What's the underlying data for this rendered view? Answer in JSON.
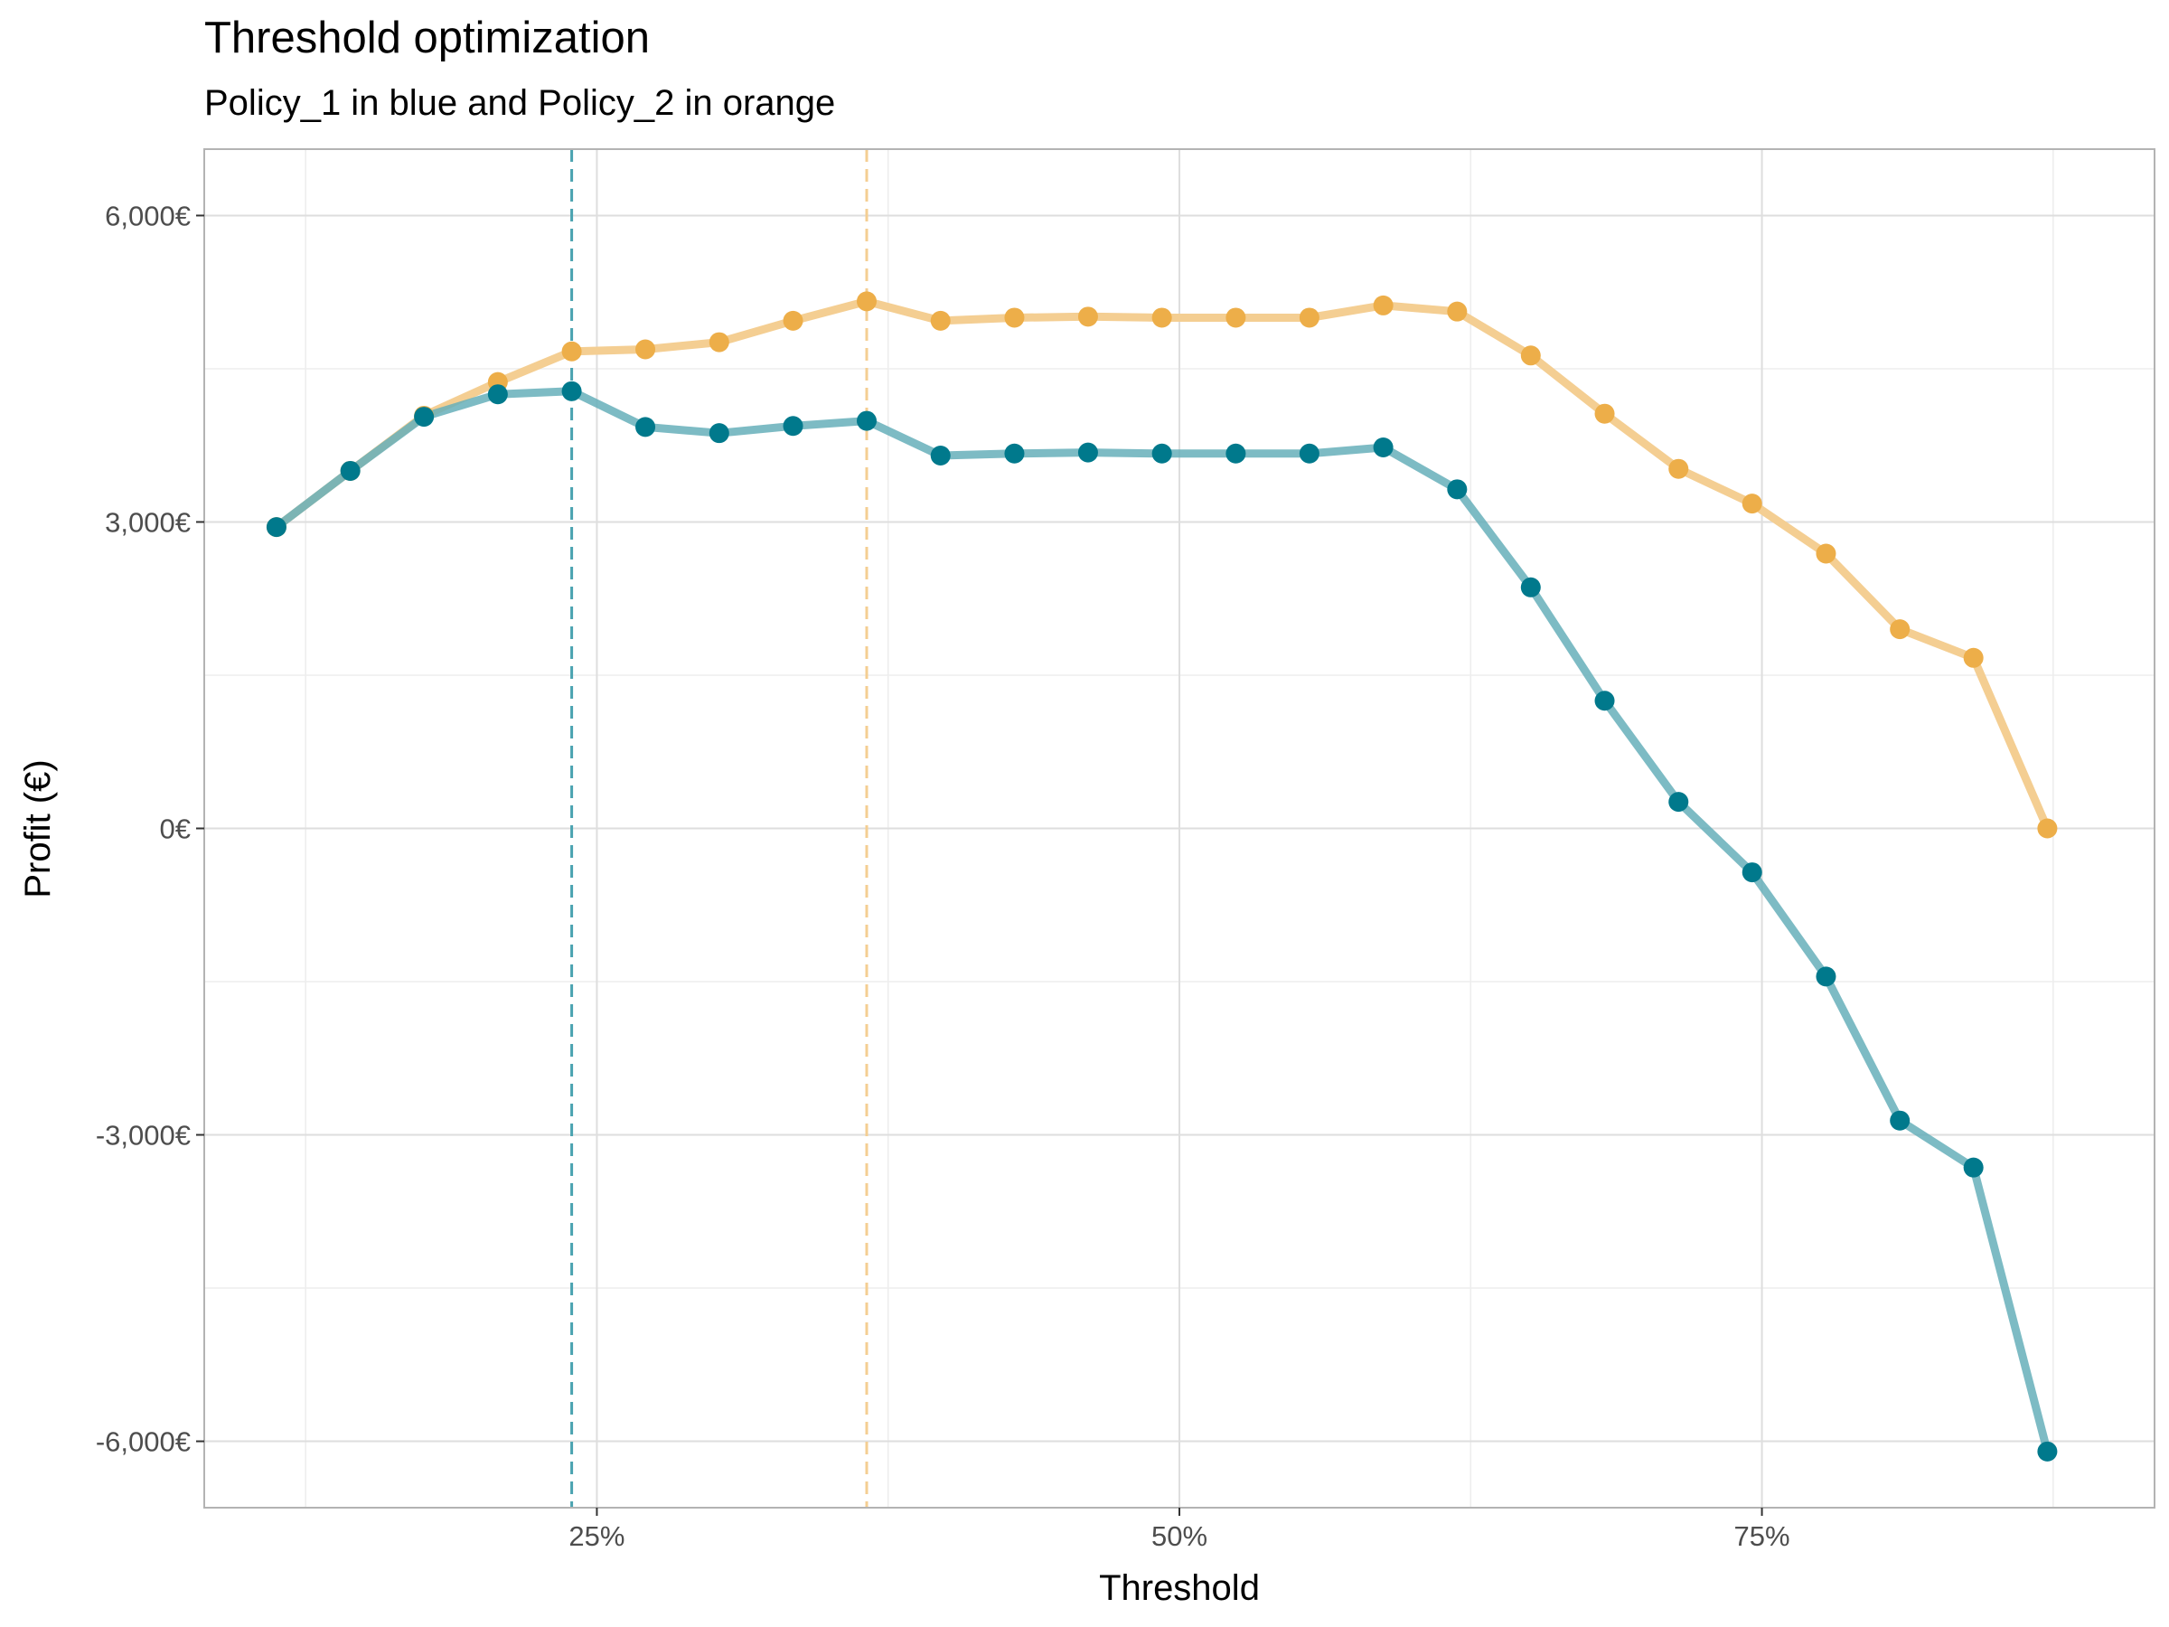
{
  "chart_data": {
    "type": "line",
    "title": "Threshold optimization",
    "subtitle": "Policy_1 in blue and Policy_2 in orange",
    "xlabel": "Threshold",
    "ylabel": "Profit (€)",
    "xlim": [
      0.0815,
      0.9185
    ],
    "ylim": [
      -6650,
      6650
    ],
    "x_ticks": [
      0.25,
      0.5,
      0.75
    ],
    "x_tick_labels": [
      "25%",
      "50%",
      "75%"
    ],
    "x_minor_ticks": [
      0.125,
      0.375,
      0.625,
      0.875
    ],
    "y_ticks": [
      -6000,
      -3000,
      0,
      3000,
      6000
    ],
    "y_tick_labels": [
      "-6,000€",
      "-3,000€",
      "0€",
      "3,000€",
      "6,000€"
    ],
    "y_minor_ticks": [
      -4500,
      -1500,
      1500,
      4500
    ],
    "grid": true,
    "legend": "none",
    "x": [
      0.1125,
      0.1442,
      0.1758,
      0.2075,
      0.2392,
      0.2708,
      0.3025,
      0.3342,
      0.3658,
      0.3975,
      0.4292,
      0.4608,
      0.4925,
      0.5242,
      0.5558,
      0.5875,
      0.6192,
      0.6508,
      0.6825,
      0.7142,
      0.7458,
      0.7775,
      0.8092,
      0.8408,
      0.8725
    ],
    "series": [
      {
        "name": "Policy_1",
        "color": "#00798C",
        "line_color": "#66AFBA",
        "threshold": 0.2392,
        "values": [
          2950,
          3500,
          4030,
          4250,
          4280,
          3930,
          3870,
          3940,
          3990,
          3650,
          3670,
          3680,
          3670,
          3670,
          3670,
          3730,
          3320,
          2360,
          1250,
          260,
          -430,
          -1450,
          -2860,
          -3320,
          -6100
        ]
      },
      {
        "name": "Policy_2",
        "color": "#EDAE49",
        "line_color": "#F4CE92",
        "threshold": 0.3658,
        "values": [
          2950,
          3500,
          4040,
          4370,
          4670,
          4690,
          4760,
          4970,
          5160,
          4970,
          5000,
          5010,
          5000,
          5000,
          5000,
          5120,
          5060,
          4630,
          4060,
          3520,
          3180,
          2690,
          1950,
          1670,
          0
        ]
      }
    ]
  }
}
